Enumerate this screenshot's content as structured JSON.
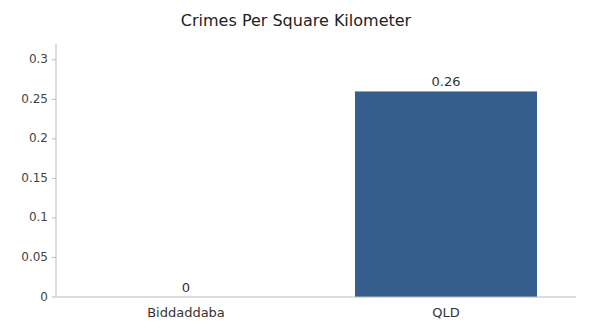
{
  "chart_data": {
    "type": "bar",
    "title": "Crimes Per Square Kilometer",
    "categories": [
      "Biddaddaba",
      "QLD"
    ],
    "values": [
      0,
      0.26
    ],
    "color": "#365f8d",
    "ylim": [
      0,
      0.32
    ],
    "yticks": [
      0,
      0.05,
      0.1,
      0.15,
      0.2,
      0.25,
      0.3
    ],
    "data_labels": true,
    "grid": false
  }
}
